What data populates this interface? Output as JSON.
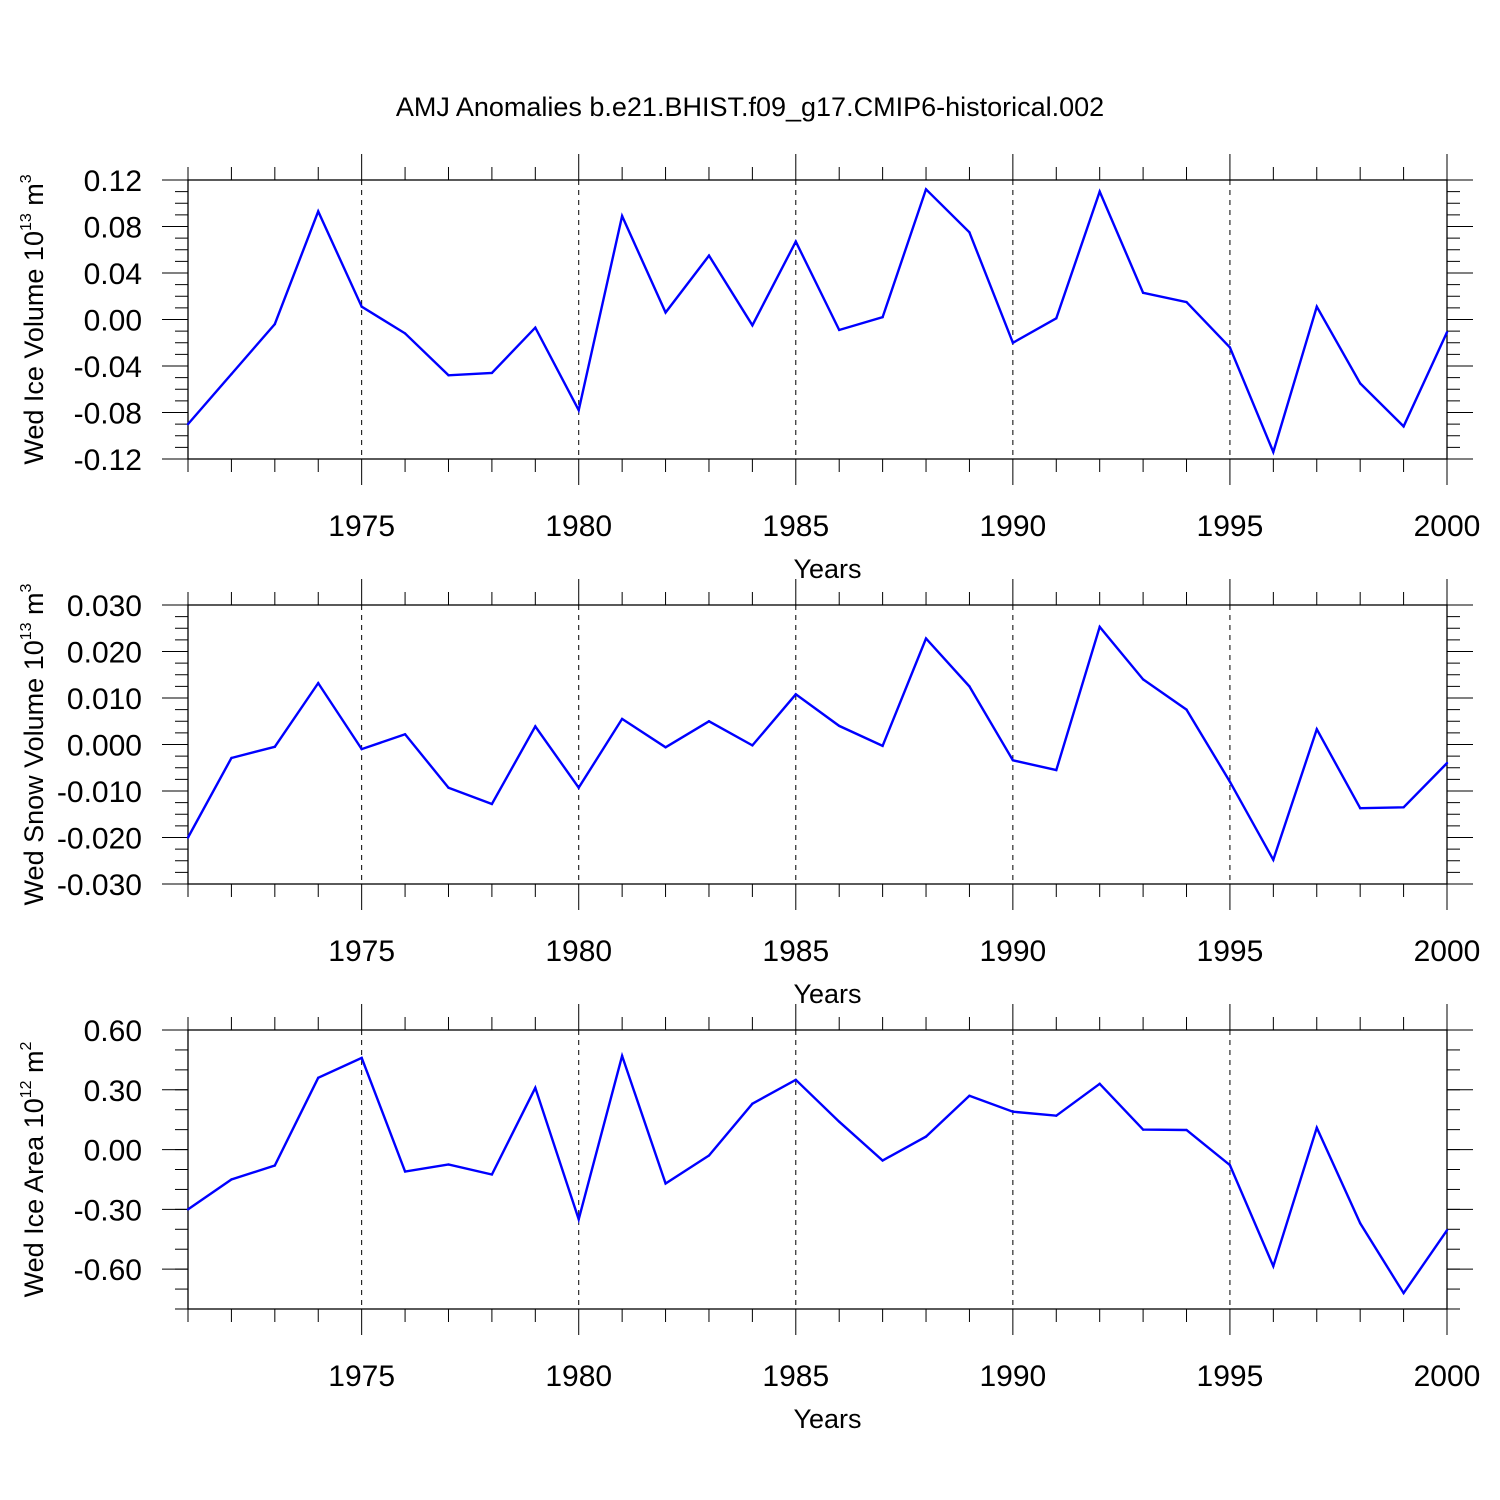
{
  "figure": {
    "title": "AMJ Anomalies b.e21.BHIST.f09_g17.CMIP6-historical.002"
  },
  "chart_data": [
    {
      "type": "line",
      "id": "ice-volume",
      "ylabel": "Wed Ice Volume 10",
      "ylabel_exp": "13",
      "ylabel_unit": "m",
      "ylabel_unit_exp": "3",
      "xlabel": "Years",
      "xlim": [
        1971,
        2000
      ],
      "ylim": [
        -0.12,
        0.12
      ],
      "yticks": [
        -0.12,
        -0.08,
        -0.04,
        0.0,
        0.04,
        0.08,
        0.12
      ],
      "ytick_labels": [
        "-0.12",
        "-0.08",
        "-0.04",
        "0.00",
        "0.04",
        "0.08",
        "0.12"
      ],
      "yminor_step": 0.01,
      "xticks": [
        1975,
        1980,
        1985,
        1990,
        1995,
        2000
      ],
      "xtick_labels": [
        "1975",
        "1980",
        "1985",
        "1990",
        "1995",
        "2000"
      ],
      "grid": "vertical dashed at major x ticks",
      "color": "#0000ff",
      "x": [
        1971,
        1972,
        1973,
        1974,
        1975,
        1976,
        1977,
        1978,
        1979,
        1980,
        1981,
        1982,
        1983,
        1984,
        1985,
        1986,
        1987,
        1988,
        1989,
        1990,
        1991,
        1992,
        1993,
        1994,
        1995,
        1996,
        1997,
        1998,
        1999,
        2000
      ],
      "values": [
        -0.09,
        -0.047,
        -0.004,
        0.093,
        0.011,
        -0.012,
        -0.048,
        -0.046,
        -0.007,
        -0.078,
        0.089,
        0.006,
        0.055,
        -0.005,
        0.067,
        -0.009,
        0.002,
        0.112,
        0.075,
        -0.02,
        0.001,
        0.11,
        0.023,
        0.015,
        -0.024,
        -0.114,
        0.011,
        -0.055,
        -0.092,
        -0.011
      ]
    },
    {
      "type": "line",
      "id": "snow-volume",
      "ylabel": "Wed Snow Volume 10",
      "ylabel_exp": "13",
      "ylabel_unit": "m",
      "ylabel_unit_exp": "3",
      "xlabel": "Years",
      "xlim": [
        1971,
        2000
      ],
      "ylim": [
        -0.03,
        0.03
      ],
      "yticks": [
        -0.03,
        -0.02,
        -0.01,
        0.0,
        0.01,
        0.02,
        0.03
      ],
      "ytick_labels": [
        "-0.030",
        "-0.020",
        "-0.010",
        "0.000",
        "0.010",
        "0.020",
        "0.030"
      ],
      "yminor_step": 0.0025,
      "xticks": [
        1975,
        1980,
        1985,
        1990,
        1995,
        2000
      ],
      "xtick_labels": [
        "1975",
        "1980",
        "1985",
        "1990",
        "1995",
        "2000"
      ],
      "grid": "vertical dashed at major x ticks",
      "color": "#0000ff",
      "x": [
        1971,
        1972,
        1973,
        1974,
        1975,
        1976,
        1977,
        1978,
        1979,
        1980,
        1981,
        1982,
        1983,
        1984,
        1985,
        1986,
        1987,
        1988,
        1989,
        1990,
        1991,
        1992,
        1993,
        1994,
        1995,
        1996,
        1997,
        1998,
        1999,
        2000
      ],
      "values": [
        -0.02,
        -0.0029,
        -0.0005,
        0.0132,
        -0.001,
        0.0022,
        -0.0093,
        -0.0128,
        0.0039,
        -0.0093,
        0.0055,
        -0.0006,
        0.005,
        -0.0002,
        0.0108,
        0.004,
        -0.0003,
        0.0228,
        0.0125,
        -0.0034,
        -0.0055,
        0.0253,
        0.014,
        0.0075,
        -0.008,
        -0.0248,
        0.0033,
        -0.0137,
        -0.0135,
        -0.004
      ]
    },
    {
      "type": "line",
      "id": "ice-area",
      "ylabel": "Wed Ice Area 10",
      "ylabel_exp": "12",
      "ylabel_unit": "m",
      "ylabel_unit_exp": "2",
      "xlabel": "Years",
      "xlim": [
        1971,
        2000
      ],
      "ylim": [
        -0.8,
        0.6
      ],
      "yticks": [
        -0.6,
        -0.3,
        0.0,
        0.3,
        0.6
      ],
      "ytick_labels": [
        "-0.60",
        "-0.30",
        "0.00",
        "0.30",
        "0.60"
      ],
      "yminor_step": 0.1,
      "xticks": [
        1975,
        1980,
        1985,
        1990,
        1995,
        2000
      ],
      "xtick_labels": [
        "1975",
        "1980",
        "1985",
        "1990",
        "1995",
        "2000"
      ],
      "grid": "vertical dashed at major x ticks",
      "color": "#0000ff",
      "x": [
        1971,
        1972,
        1973,
        1974,
        1975,
        1976,
        1977,
        1978,
        1979,
        1980,
        1981,
        1982,
        1983,
        1984,
        1985,
        1986,
        1987,
        1988,
        1989,
        1990,
        1991,
        1992,
        1993,
        1994,
        1995,
        1996,
        1997,
        1998,
        1999,
        2000
      ],
      "values": [
        -0.3,
        -0.15,
        -0.08,
        0.36,
        0.46,
        -0.11,
        -0.075,
        -0.125,
        0.31,
        -0.35,
        0.47,
        -0.17,
        -0.03,
        0.23,
        0.35,
        0.14,
        -0.055,
        0.065,
        0.27,
        0.19,
        0.17,
        0.33,
        0.1,
        0.098,
        -0.078,
        -0.585,
        0.11,
        -0.37,
        -0.72,
        -0.405
      ]
    }
  ]
}
